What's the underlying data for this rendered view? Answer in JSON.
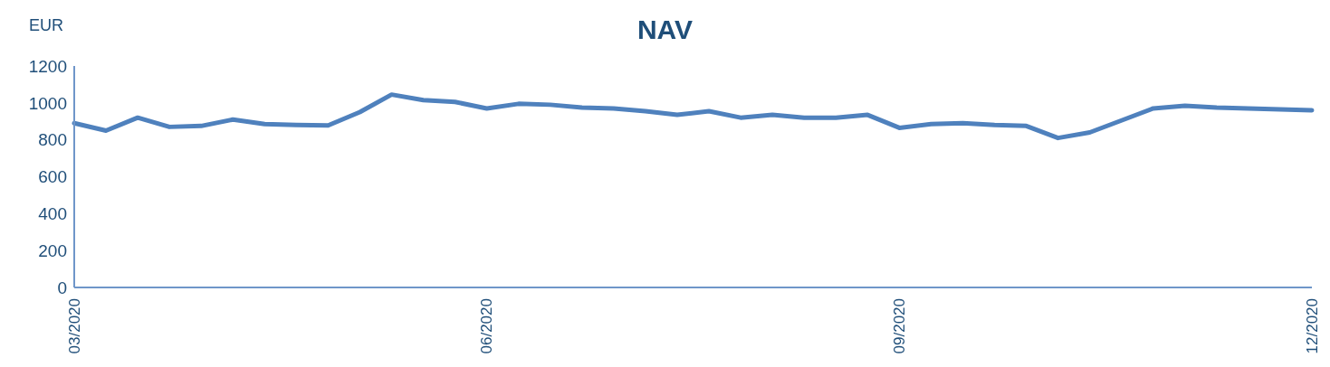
{
  "chart_data": {
    "type": "line",
    "title": "NAV",
    "ylabel": "EUR",
    "categories": [
      "03/2020",
      null,
      null,
      null,
      null,
      null,
      null,
      null,
      null,
      null,
      null,
      null,
      null,
      "06/2020",
      null,
      null,
      null,
      null,
      null,
      null,
      null,
      null,
      null,
      null,
      null,
      null,
      "09/2020",
      null,
      null,
      null,
      null,
      null,
      null,
      null,
      null,
      null,
      null,
      null,
      null,
      "12/2020"
    ],
    "series": [
      {
        "color": "#4f81bd",
        "values": [
          890,
          850,
          920,
          870,
          875,
          910,
          885,
          880,
          878,
          950,
          1045,
          1015,
          1005,
          970,
          995,
          990,
          975,
          970,
          955,
          935,
          955,
          920,
          935,
          920,
          920,
          935,
          865,
          885,
          890,
          880,
          875,
          810,
          840,
          905,
          970,
          985,
          975,
          970,
          965,
          960
        ]
      }
    ],
    "ylim": [
      0,
      1200
    ],
    "yticks": [
      0,
      200,
      400,
      600,
      800,
      1000,
      1200
    ],
    "marker": "none",
    "line_style": "solid"
  }
}
